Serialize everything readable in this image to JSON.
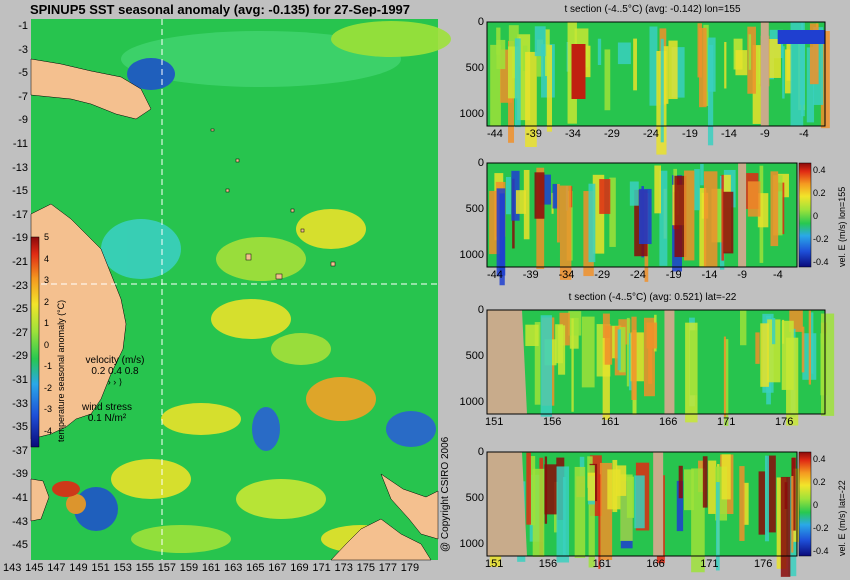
{
  "page": {
    "title": "SPINUP5 SST seasonal anomaly (avg: -0.135) for 27-Sep-1997",
    "copyright": "@ Copyright CSIRO 2006"
  },
  "map": {
    "lat_ticks": [
      "-1",
      "-3",
      "-5",
      "-7",
      "-9",
      "-11",
      "-13",
      "-15",
      "-17",
      "-19",
      "-21",
      "-23",
      "-25",
      "-27",
      "-29",
      "-31",
      "-33",
      "-35",
      "-37",
      "-39",
      "-41",
      "-43",
      "-45"
    ],
    "lon_ticks": [
      "143",
      "145",
      "147",
      "149",
      "151",
      "153",
      "155",
      "157",
      "159",
      "161",
      "163",
      "165",
      "167",
      "169",
      "171",
      "173",
      "175",
      "177",
      "179"
    ],
    "colorbar": {
      "label": "temperature seasonal anomaly (°C)",
      "ticks": [
        "5",
        "4",
        "3",
        "2",
        "1",
        "0",
        "-1",
        "-2",
        "-3",
        "-4"
      ]
    },
    "velocity_legend": {
      "title": "velocity (m/s)",
      "values": "0.2 0.4 0.8"
    },
    "wind_legend": {
      "title": "wind stress",
      "value": "0.1 N/m²"
    },
    "section_lon": 155,
    "section_lat": -22
  },
  "panels": {
    "p1": {
      "title": "t section (-4..5°C) (avg: -0.142) lon=155",
      "x_ticks": [
        "-44",
        "-39",
        "-34",
        "-29",
        "-24",
        "-19",
        "-14",
        "-9",
        "-4"
      ],
      "y_ticks": [
        "0",
        "500",
        "1000"
      ]
    },
    "p2": {
      "x_ticks": [
        "-44",
        "-39",
        "-34",
        "-29",
        "-24",
        "-19",
        "-14",
        "-9",
        "-4"
      ],
      "y_ticks": [
        "0",
        "500",
        "1000"
      ],
      "cbar_label": "vel. E (m/s) lon=155",
      "cbar_ticks": [
        "0.4",
        "0.2",
        "0",
        "-0.2",
        "-0.4"
      ]
    },
    "p3": {
      "title": "t section (-4..5°C) (avg: 0.521) lat=-22",
      "x_ticks": [
        "151",
        "156",
        "161",
        "166",
        "171",
        "176"
      ],
      "y_ticks": [
        "0",
        "500",
        "1000"
      ]
    },
    "p4": {
      "x_ticks": [
        "151",
        "156",
        "161",
        "166",
        "171",
        "176"
      ],
      "y_ticks": [
        "0",
        "500",
        "1000"
      ],
      "cbar_label": "vel. E (m/s) lat=-22",
      "cbar_ticks": [
        "0.4",
        "0.2",
        "0",
        "-0.2",
        "-0.4"
      ]
    }
  },
  "colors": {
    "land": "#f4c08f",
    "section_land": "#c8ab8b",
    "ocean_base": "#24c84a",
    "background": "#c0c0c0"
  }
}
